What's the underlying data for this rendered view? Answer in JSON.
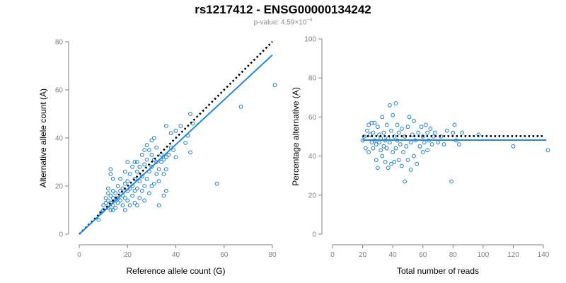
{
  "title": "rs1217412 - ENSG00000134242",
  "subtitle_prefix": "p-value: 4.59×10",
  "subtitle_exponent": "−4",
  "colors": {
    "points": "#1f7fcf",
    "fit": "#1f88e5",
    "reference": "#000000",
    "axis": "#808080"
  },
  "chart_data": [
    {
      "type": "scatter",
      "xlabel": "Reference allele count (G)",
      "ylabel": "Alternative allele count (A)",
      "xlim": [
        0,
        80
      ],
      "ylim": [
        0,
        80
      ],
      "xticks": [
        0,
        20,
        40,
        60,
        80
      ],
      "yticks": [
        0,
        20,
        40,
        60,
        80
      ],
      "reference_line": {
        "style": "dotted",
        "points": [
          [
            0,
            0
          ],
          [
            80,
            80
          ]
        ]
      },
      "fit_line": {
        "style": "solid",
        "points": [
          [
            0,
            0
          ],
          [
            80,
            74.5
          ]
        ]
      },
      "points": [
        [
          8,
          6
        ],
        [
          9,
          9
        ],
        [
          10,
          10
        ],
        [
          10,
          12
        ],
        [
          11,
          13
        ],
        [
          11,
          15
        ],
        [
          12,
          11
        ],
        [
          12,
          14
        ],
        [
          12,
          17
        ],
        [
          12,
          19
        ],
        [
          13,
          10
        ],
        [
          13,
          13
        ],
        [
          13,
          16
        ],
        [
          13,
          25
        ],
        [
          13,
          27
        ],
        [
          14,
          10
        ],
        [
          14,
          12
        ],
        [
          14,
          15
        ],
        [
          14,
          18
        ],
        [
          14,
          23
        ],
        [
          15,
          11
        ],
        [
          15,
          14
        ],
        [
          15,
          17
        ],
        [
          16,
          13
        ],
        [
          16,
          15
        ],
        [
          16,
          20
        ],
        [
          17,
          14
        ],
        [
          17,
          18
        ],
        [
          17,
          23
        ],
        [
          18,
          12
        ],
        [
          18,
          16
        ],
        [
          18,
          19
        ],
        [
          19,
          10
        ],
        [
          19,
          15
        ],
        [
          19,
          21
        ],
        [
          19,
          26
        ],
        [
          20,
          14
        ],
        [
          20,
          18
        ],
        [
          20,
          22
        ],
        [
          20,
          30
        ],
        [
          21,
          12
        ],
        [
          21,
          19
        ],
        [
          21,
          25
        ],
        [
          22,
          16
        ],
        [
          22,
          20
        ],
        [
          22,
          28
        ],
        [
          23,
          13
        ],
        [
          23,
          18
        ],
        [
          23,
          23
        ],
        [
          23,
          30
        ],
        [
          24,
          12
        ],
        [
          24,
          19
        ],
        [
          24,
          26
        ],
        [
          24,
          30
        ],
        [
          25,
          15
        ],
        [
          25,
          22
        ],
        [
          25,
          28
        ],
        [
          26,
          18
        ],
        [
          26,
          24
        ],
        [
          26,
          33
        ],
        [
          27,
          14
        ],
        [
          27,
          20
        ],
        [
          27,
          29
        ],
        [
          27,
          35
        ],
        [
          28,
          23
        ],
        [
          28,
          31
        ],
        [
          28,
          37
        ],
        [
          29,
          17
        ],
        [
          29,
          26
        ],
        [
          29,
          35
        ],
        [
          30,
          20
        ],
        [
          30,
          28
        ],
        [
          30,
          33
        ],
        [
          30,
          39
        ],
        [
          31,
          21
        ],
        [
          31,
          31
        ],
        [
          31,
          40
        ],
        [
          32,
          25
        ],
        [
          32,
          30
        ],
        [
          32,
          36
        ],
        [
          33,
          12
        ],
        [
          33,
          22
        ],
        [
          33,
          27
        ],
        [
          34,
          30
        ],
        [
          34,
          33
        ],
        [
          35,
          16
        ],
        [
          35,
          25
        ],
        [
          35,
          31
        ],
        [
          36,
          18
        ],
        [
          36,
          27
        ],
        [
          36,
          32
        ],
        [
          36,
          45
        ],
        [
          37,
          33
        ],
        [
          38,
          36
        ],
        [
          38,
          42
        ],
        [
          39,
          35
        ],
        [
          40,
          32
        ],
        [
          40,
          43
        ],
        [
          42,
          45
        ],
        [
          44,
          38
        ],
        [
          45,
          41
        ],
        [
          46,
          34
        ],
        [
          46,
          50
        ],
        [
          47,
          46
        ],
        [
          57,
          21
        ],
        [
          67,
          53
        ],
        [
          81,
          62
        ]
      ]
    },
    {
      "type": "scatter",
      "xlabel": "Total number of reads",
      "ylabel": "Percentage alternative (A)",
      "xlim": [
        0,
        140
      ],
      "ylim": [
        0,
        100
      ],
      "xticks": [
        0,
        20,
        40,
        60,
        80,
        100,
        120,
        140
      ],
      "yticks": [
        0,
        20,
        40,
        60,
        80,
        100
      ],
      "reference_line": {
        "style": "dotted",
        "points": [
          [
            20,
            50.2
          ],
          [
            140,
            50.2
          ]
        ]
      },
      "fit_line": {
        "style": "solid",
        "points": [
          [
            20,
            48.2
          ],
          [
            142,
            48.2
          ]
        ]
      },
      "points": [
        [
          20,
          48
        ],
        [
          21,
          50
        ],
        [
          22,
          44
        ],
        [
          23,
          53
        ],
        [
          24,
          56
        ],
        [
          24,
          42
        ],
        [
          25,
          51
        ],
        [
          26,
          47
        ],
        [
          26,
          57
        ],
        [
          27,
          44
        ],
        [
          27,
          52
        ],
        [
          28,
          48
        ],
        [
          28,
          57
        ],
        [
          29,
          38
        ],
        [
          29,
          46
        ],
        [
          30,
          55
        ],
        [
          30,
          34
        ],
        [
          31,
          47
        ],
        [
          31,
          51
        ],
        [
          32,
          43
        ],
        [
          32,
          49
        ],
        [
          33,
          60
        ],
        [
          33,
          40
        ],
        [
          34,
          45
        ],
        [
          34,
          52
        ],
        [
          35,
          37
        ],
        [
          35,
          48
        ],
        [
          36,
          44
        ],
        [
          36,
          56
        ],
        [
          37,
          34
        ],
        [
          37,
          49
        ],
        [
          38,
          47
        ],
        [
          38,
          66
        ],
        [
          39,
          36
        ],
        [
          39,
          53
        ],
        [
          40,
          42
        ],
        [
          40,
          61
        ],
        [
          41,
          37
        ],
        [
          41,
          50
        ],
        [
          42,
          44
        ],
        [
          42,
          67
        ],
        [
          43,
          48
        ],
        [
          43,
          56
        ],
        [
          44,
          38
        ],
        [
          44,
          52
        ],
        [
          45,
          46
        ],
        [
          46,
          35
        ],
        [
          46,
          54
        ],
        [
          47,
          42
        ],
        [
          48,
          50
        ],
        [
          48,
          27
        ],
        [
          49,
          45
        ],
        [
          50,
          55
        ],
        [
          50,
          38
        ],
        [
          51,
          60
        ],
        [
          52,
          47
        ],
        [
          52,
          33
        ],
        [
          53,
          51
        ],
        [
          54,
          58
        ],
        [
          54,
          40
        ],
        [
          55,
          48
        ],
        [
          56,
          36
        ],
        [
          57,
          52
        ],
        [
          58,
          45
        ],
        [
          59,
          55
        ],
        [
          60,
          42
        ],
        [
          60,
          50
        ],
        [
          61,
          47
        ],
        [
          62,
          56
        ],
        [
          63,
          43
        ],
        [
          63,
          52
        ],
        [
          64,
          48
        ],
        [
          65,
          54
        ],
        [
          66,
          46
        ],
        [
          67,
          50
        ],
        [
          68,
          52
        ],
        [
          70,
          47
        ],
        [
          72,
          50
        ],
        [
          74,
          46
        ],
        [
          76,
          53
        ],
        [
          79,
          27
        ],
        [
          80,
          52
        ],
        [
          81,
          56
        ],
        [
          82,
          48
        ],
        [
          84,
          46
        ],
        [
          86,
          52
        ],
        [
          97,
          51
        ],
        [
          120,
          45
        ],
        [
          143,
          43
        ]
      ]
    }
  ]
}
